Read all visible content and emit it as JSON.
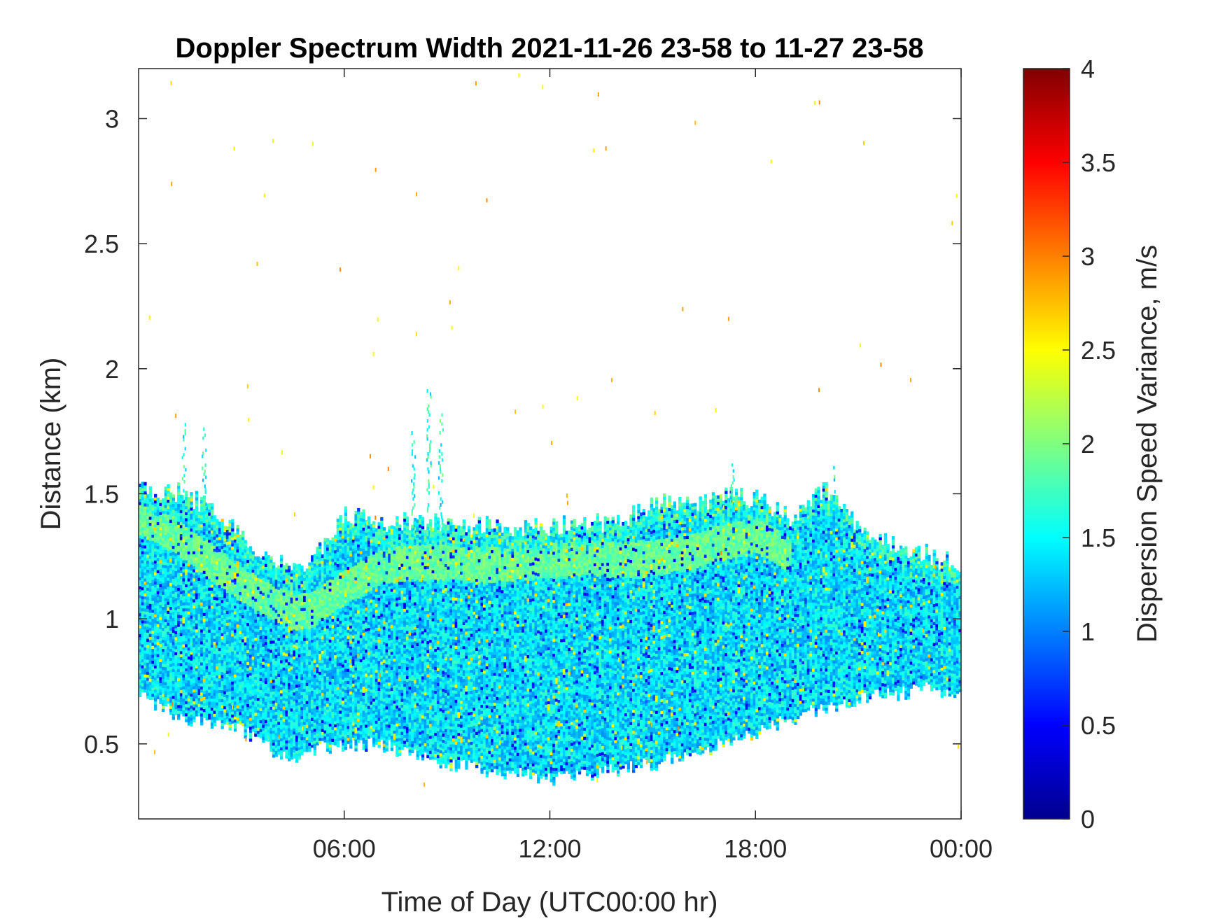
{
  "chart_data": {
    "type": "heatmap",
    "title": "Doppler Spectrum Width 2021-11-26 23-58 to 11-27 23-58",
    "xlabel": "Time of Day (UTC00:00 hr)",
    "ylabel": "Distance (km)",
    "colorbar_label": "Dispersion Speed Variance, m/s",
    "xlim": [
      0,
      24
    ],
    "ylim": [
      0.2,
      3.2
    ],
    "clim": [
      0,
      4
    ],
    "colormap": "jet",
    "x_ticks": [
      {
        "value": 6,
        "label": "06:00"
      },
      {
        "value": 12,
        "label": "12:00"
      },
      {
        "value": 18,
        "label": "18:00"
      },
      {
        "value": 24,
        "label": "00:00"
      }
    ],
    "y_ticks": [
      {
        "value": 0.5,
        "label": "0.5"
      },
      {
        "value": 1,
        "label": "1"
      },
      {
        "value": 1.5,
        "label": "1.5"
      },
      {
        "value": 2,
        "label": "2"
      },
      {
        "value": 2.5,
        "label": "2.5"
      },
      {
        "value": 3,
        "label": "3"
      }
    ],
    "colorbar_ticks": [
      {
        "value": 0,
        "label": "0"
      },
      {
        "value": 0.5,
        "label": "0.5"
      },
      {
        "value": 1,
        "label": "1"
      },
      {
        "value": 1.5,
        "label": "1.5"
      },
      {
        "value": 2,
        "label": "2"
      },
      {
        "value": 2.5,
        "label": "2.5"
      },
      {
        "value": 3,
        "label": "3"
      },
      {
        "value": 3.5,
        "label": "3.5"
      },
      {
        "value": 4,
        "label": "4"
      }
    ],
    "echo_layer": {
      "time_hr": [
        0,
        1,
        2,
        3,
        4,
        4.5,
        5,
        6,
        7,
        8,
        9,
        10,
        11,
        12,
        13,
        14,
        15,
        16,
        17,
        18,
        19,
        20,
        21,
        22,
        23,
        24
      ],
      "top_km": [
        1.52,
        1.5,
        1.45,
        1.32,
        1.22,
        1.2,
        1.22,
        1.42,
        1.38,
        1.38,
        1.38,
        1.37,
        1.36,
        1.37,
        1.37,
        1.38,
        1.45,
        1.45,
        1.48,
        1.48,
        1.4,
        1.52,
        1.35,
        1.3,
        1.25,
        1.2
      ],
      "bottom_km": [
        0.7,
        0.62,
        0.58,
        0.55,
        0.46,
        0.42,
        0.48,
        0.5,
        0.5,
        0.46,
        0.42,
        0.4,
        0.38,
        0.36,
        0.38,
        0.4,
        0.42,
        0.46,
        0.5,
        0.55,
        0.6,
        0.65,
        0.68,
        0.7,
        0.72,
        0.7
      ],
      "core_value_ms": 1.4,
      "band_value_ms": 1.9
    },
    "enhanced_band": {
      "time_hr": [
        0,
        1,
        2,
        3,
        4,
        4.5,
        5,
        6,
        7,
        8,
        9,
        10,
        11,
        12,
        13,
        14,
        15,
        16,
        17,
        18,
        19
      ],
      "center_km": [
        1.4,
        1.33,
        1.23,
        1.13,
        1.05,
        1.02,
        1.03,
        1.12,
        1.2,
        1.22,
        1.22,
        1.21,
        1.22,
        1.23,
        1.24,
        1.23,
        1.24,
        1.26,
        1.3,
        1.33,
        1.25
      ]
    },
    "plumes": [
      {
        "time_hr": 1.3,
        "top_km": 1.78
      },
      {
        "time_hr": 1.9,
        "top_km": 1.76
      },
      {
        "time_hr": 8.0,
        "top_km": 1.78
      },
      {
        "time_hr": 8.45,
        "top_km": 1.92
      },
      {
        "time_hr": 8.8,
        "top_km": 1.82
      },
      {
        "time_hr": 17.3,
        "top_km": 1.63
      },
      {
        "time_hr": 20.3,
        "top_km": 1.62
      }
    ]
  }
}
